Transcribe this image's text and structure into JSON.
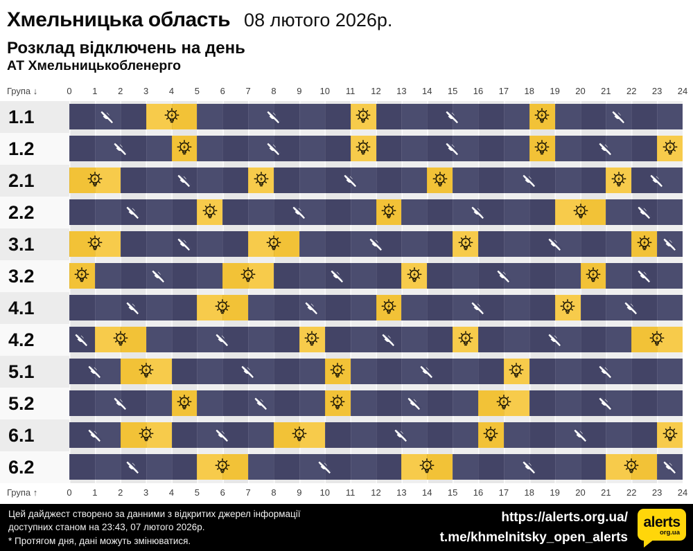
{
  "header": {
    "region": "Хмельницька область",
    "date": "08 лютого 2026р.",
    "subtitle": "Розклад відключень на день",
    "company": "АТ Хмельницькобленерго"
  },
  "axis": {
    "group_label_top": "Група ↓",
    "group_label_bottom": "Група ↑",
    "hours": [
      "0",
      "1",
      "2",
      "3",
      "4",
      "5",
      "6",
      "7",
      "8",
      "9",
      "10",
      "11",
      "12",
      "13",
      "14",
      "15",
      "16",
      "17",
      "18",
      "19",
      "20",
      "21",
      "22",
      "23",
      "24"
    ]
  },
  "colors": {
    "power_on": "#F5C640",
    "power_off": "#47496B",
    "logo_yellow": "#FFD60A",
    "footer_bg": "#000000"
  },
  "icons": {
    "on": "power-on-icon (lightbulb with rays and bolt)",
    "off": "power-off-icon (plug crossed by slash)"
  },
  "chart_data": {
    "type": "heatmap",
    "title": "Розклад відключень на день",
    "x_unit": "hour",
    "x_range": [
      0,
      24
    ],
    "states": {
      "on": "світло є (жовтий)",
      "off": "відключення (темний)"
    },
    "rows": [
      {
        "group": "1.1",
        "segments": [
          {
            "from": 0,
            "to": 3,
            "state": "off"
          },
          {
            "from": 3,
            "to": 5,
            "state": "on"
          },
          {
            "from": 5,
            "to": 11,
            "state": "off"
          },
          {
            "from": 11,
            "to": 12,
            "state": "on"
          },
          {
            "from": 12,
            "to": 18,
            "state": "off"
          },
          {
            "from": 18,
            "to": 19,
            "state": "on"
          },
          {
            "from": 19,
            "to": 24,
            "state": "off"
          }
        ]
      },
      {
        "group": "1.2",
        "segments": [
          {
            "from": 0,
            "to": 4,
            "state": "off"
          },
          {
            "from": 4,
            "to": 5,
            "state": "on"
          },
          {
            "from": 5,
            "to": 11,
            "state": "off"
          },
          {
            "from": 11,
            "to": 12,
            "state": "on"
          },
          {
            "from": 12,
            "to": 18,
            "state": "off"
          },
          {
            "from": 18,
            "to": 19,
            "state": "on"
          },
          {
            "from": 19,
            "to": 23,
            "state": "off"
          },
          {
            "from": 23,
            "to": 24,
            "state": "on"
          }
        ]
      },
      {
        "group": "2.1",
        "segments": [
          {
            "from": 0,
            "to": 2,
            "state": "on"
          },
          {
            "from": 2,
            "to": 7,
            "state": "off"
          },
          {
            "from": 7,
            "to": 8,
            "state": "on"
          },
          {
            "from": 8,
            "to": 14,
            "state": "off"
          },
          {
            "from": 14,
            "to": 15,
            "state": "on"
          },
          {
            "from": 15,
            "to": 21,
            "state": "off"
          },
          {
            "from": 21,
            "to": 22,
            "state": "on"
          },
          {
            "from": 22,
            "to": 24,
            "state": "off"
          }
        ]
      },
      {
        "group": "2.2",
        "segments": [
          {
            "from": 0,
            "to": 5,
            "state": "off"
          },
          {
            "from": 5,
            "to": 6,
            "state": "on"
          },
          {
            "from": 6,
            "to": 12,
            "state": "off"
          },
          {
            "from": 12,
            "to": 13,
            "state": "on"
          },
          {
            "from": 13,
            "to": 19,
            "state": "off"
          },
          {
            "from": 19,
            "to": 21,
            "state": "on"
          },
          {
            "from": 21,
            "to": 24,
            "state": "off"
          }
        ]
      },
      {
        "group": "3.1",
        "segments": [
          {
            "from": 0,
            "to": 2,
            "state": "on"
          },
          {
            "from": 2,
            "to": 7,
            "state": "off"
          },
          {
            "from": 7,
            "to": 9,
            "state": "on"
          },
          {
            "from": 9,
            "to": 15,
            "state": "off"
          },
          {
            "from": 15,
            "to": 16,
            "state": "on"
          },
          {
            "from": 16,
            "to": 22,
            "state": "off"
          },
          {
            "from": 22,
            "to": 23,
            "state": "on"
          },
          {
            "from": 23,
            "to": 24,
            "state": "off"
          }
        ]
      },
      {
        "group": "3.2",
        "segments": [
          {
            "from": 0,
            "to": 1,
            "state": "on"
          },
          {
            "from": 1,
            "to": 6,
            "state": "off"
          },
          {
            "from": 6,
            "to": 8,
            "state": "on"
          },
          {
            "from": 8,
            "to": 13,
            "state": "off"
          },
          {
            "from": 13,
            "to": 14,
            "state": "on"
          },
          {
            "from": 14,
            "to": 20,
            "state": "off"
          },
          {
            "from": 20,
            "to": 21,
            "state": "on"
          },
          {
            "from": 21,
            "to": 24,
            "state": "off"
          }
        ]
      },
      {
        "group": "4.1",
        "segments": [
          {
            "from": 0,
            "to": 5,
            "state": "off"
          },
          {
            "from": 5,
            "to": 7,
            "state": "on"
          },
          {
            "from": 7,
            "to": 12,
            "state": "off"
          },
          {
            "from": 12,
            "to": 13,
            "state": "on"
          },
          {
            "from": 13,
            "to": 19,
            "state": "off"
          },
          {
            "from": 19,
            "to": 20,
            "state": "on"
          },
          {
            "from": 20,
            "to": 24,
            "state": "off"
          }
        ]
      },
      {
        "group": "4.2",
        "segments": [
          {
            "from": 0,
            "to": 1,
            "state": "off"
          },
          {
            "from": 1,
            "to": 3,
            "state": "on"
          },
          {
            "from": 3,
            "to": 9,
            "state": "off"
          },
          {
            "from": 9,
            "to": 10,
            "state": "on"
          },
          {
            "from": 10,
            "to": 15,
            "state": "off"
          },
          {
            "from": 15,
            "to": 16,
            "state": "on"
          },
          {
            "from": 16,
            "to": 22,
            "state": "off"
          },
          {
            "from": 22,
            "to": 24,
            "state": "on"
          }
        ]
      },
      {
        "group": "5.1",
        "segments": [
          {
            "from": 0,
            "to": 2,
            "state": "off"
          },
          {
            "from": 2,
            "to": 4,
            "state": "on"
          },
          {
            "from": 4,
            "to": 10,
            "state": "off"
          },
          {
            "from": 10,
            "to": 11,
            "state": "on"
          },
          {
            "from": 11,
            "to": 17,
            "state": "off"
          },
          {
            "from": 17,
            "to": 18,
            "state": "on"
          },
          {
            "from": 18,
            "to": 24,
            "state": "off"
          }
        ]
      },
      {
        "group": "5.2",
        "segments": [
          {
            "from": 0,
            "to": 4,
            "state": "off"
          },
          {
            "from": 4,
            "to": 5,
            "state": "on"
          },
          {
            "from": 5,
            "to": 10,
            "state": "off"
          },
          {
            "from": 10,
            "to": 11,
            "state": "on"
          },
          {
            "from": 11,
            "to": 16,
            "state": "off"
          },
          {
            "from": 16,
            "to": 18,
            "state": "on"
          },
          {
            "from": 18,
            "to": 24,
            "state": "off"
          }
        ]
      },
      {
        "group": "6.1",
        "segments": [
          {
            "from": 0,
            "to": 2,
            "state": "off"
          },
          {
            "from": 2,
            "to": 4,
            "state": "on"
          },
          {
            "from": 4,
            "to": 8,
            "state": "off"
          },
          {
            "from": 8,
            "to": 10,
            "state": "on"
          },
          {
            "from": 10,
            "to": 16,
            "state": "off"
          },
          {
            "from": 16,
            "to": 17,
            "state": "on"
          },
          {
            "from": 17,
            "to": 23,
            "state": "off"
          },
          {
            "from": 23,
            "to": 24,
            "state": "on"
          }
        ]
      },
      {
        "group": "6.2",
        "segments": [
          {
            "from": 0,
            "to": 5,
            "state": "off"
          },
          {
            "from": 5,
            "to": 7,
            "state": "on"
          },
          {
            "from": 7,
            "to": 13,
            "state": "off"
          },
          {
            "from": 13,
            "to": 15,
            "state": "on"
          },
          {
            "from": 15,
            "to": 21,
            "state": "off"
          },
          {
            "from": 21,
            "to": 23,
            "state": "on"
          },
          {
            "from": 23,
            "to": 24,
            "state": "off"
          }
        ]
      }
    ]
  },
  "footer": {
    "note_lines": [
      "Цей дайджест створено за данними з відкритих джерел інформації",
      "доступних станом на 23:43, 07 лютого 2026р.",
      "* Протягом дня, дані можуть змінюватися."
    ],
    "links": [
      "https://alerts.org.ua/",
      "t.me/khmelnitsky_open_alerts"
    ],
    "logo": {
      "main": "alerts",
      "sub": "org.ua"
    }
  }
}
